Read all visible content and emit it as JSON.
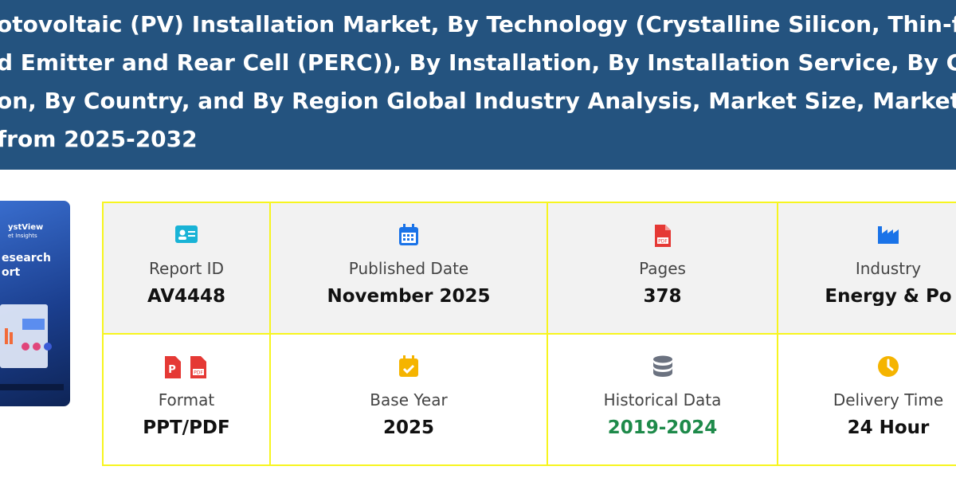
{
  "header": {
    "title_lines": [
      "otovoltaic (PV) Installation Market, By Technology (Crystalline Silicon, Thin-film, an",
      "d Emitter and Rear Cell (PERC)), By Installation, By Installation Service, By Grid Typ",
      "on, By Country, and By Region Global Industry Analysis, Market Size, Market Share",
      "from 2025-2032"
    ]
  },
  "cover": {
    "texts": [
      "ystView",
      "et Insights",
      "esearch",
      "ort"
    ]
  },
  "table": {
    "rows": [
      [
        {
          "label": "Report ID",
          "value": "AV4448"
        },
        {
          "label": "Published Date",
          "value": "November 2025"
        },
        {
          "label": "Pages",
          "value": "378"
        },
        {
          "label": "Industry",
          "value": "Energy & Po"
        }
      ],
      [
        {
          "label": "Format",
          "value": "PPT/PDF"
        },
        {
          "label": "Base Year",
          "value": "2025"
        },
        {
          "label": "Historical Data",
          "value": "2019-2024"
        },
        {
          "label": "Delivery Time",
          "value": "24 Hour"
        }
      ]
    ]
  }
}
